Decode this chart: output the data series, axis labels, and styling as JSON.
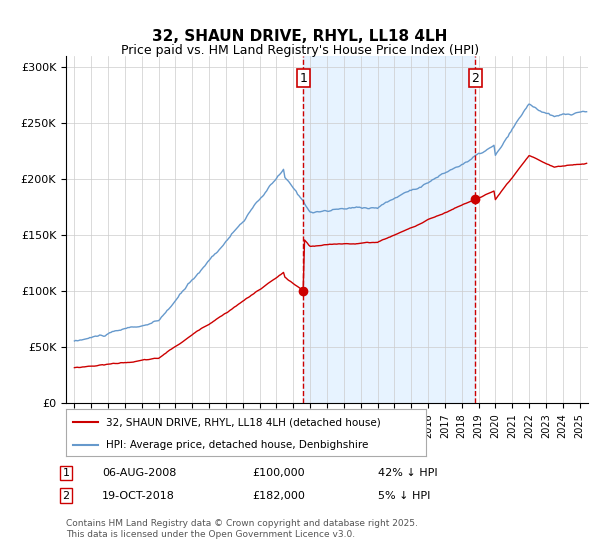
{
  "title": "32, SHAUN DRIVE, RHYL, LL18 4LH",
  "subtitle": "Price paid vs. HM Land Registry's House Price Index (HPI)",
  "legend_entries": [
    "32, SHAUN DRIVE, RHYL, LL18 4LH (detached house)",
    "HPI: Average price, detached house, Denbighshire"
  ],
  "transaction1": {
    "label": "1",
    "date": "06-AUG-2008",
    "price": 100000,
    "hpi_pct": "42% ↓ HPI"
  },
  "transaction2": {
    "label": "2",
    "date": "19-OCT-2018",
    "price": 182000,
    "hpi_pct": "5% ↓ HPI"
  },
  "footnote": "Contains HM Land Registry data © Crown copyright and database right 2025.\nThis data is licensed under the Open Government Licence v3.0.",
  "hpi_color": "#6699cc",
  "price_color": "#cc0000",
  "vline1_x": 2008.6,
  "vline2_x": 2018.8,
  "marker1_price": 100000,
  "marker2_price": 182000,
  "ylim": [
    0,
    310000
  ],
  "xlim_start": 1994.5,
  "xlim_end": 2025.5,
  "background_color": "#ffffff",
  "shade_color": "#ddeeff"
}
